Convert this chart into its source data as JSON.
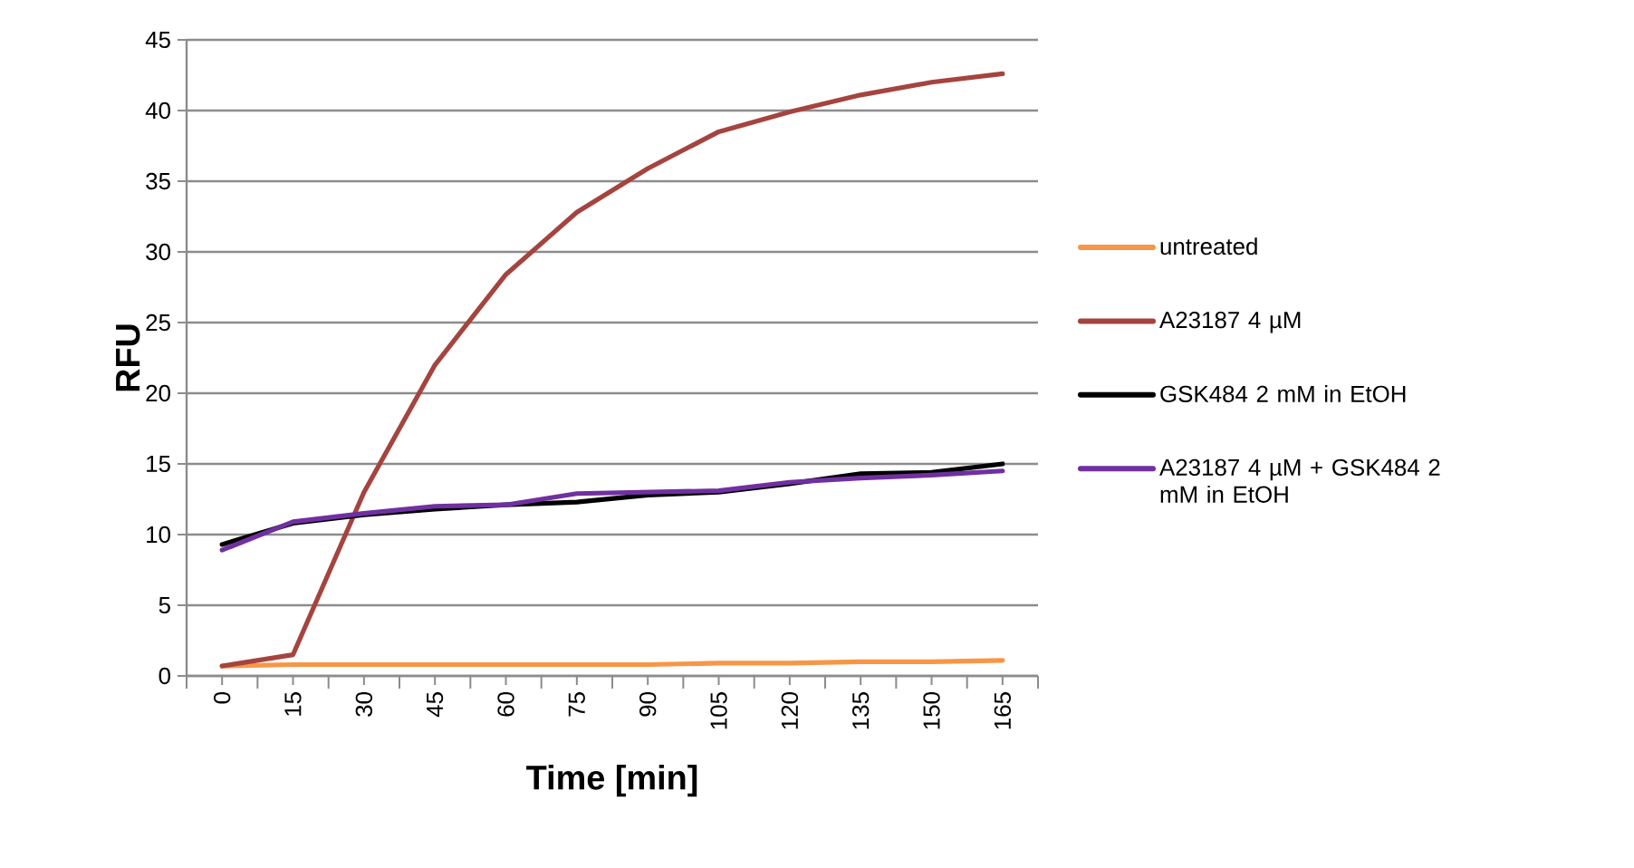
{
  "chart_data": {
    "type": "line",
    "xlabel": "Time [min]",
    "ylabel": "RFU",
    "categories": [
      "0",
      "15",
      "30",
      "45",
      "60",
      "75",
      "90",
      "105",
      "120",
      "135",
      "150",
      "165"
    ],
    "ylim": [
      0,
      45
    ],
    "yticks": [
      0,
      5,
      10,
      15,
      20,
      25,
      30,
      35,
      40,
      45
    ],
    "grid": "y",
    "legend": "right",
    "marker": "none",
    "line_style": "solid",
    "series": [
      {
        "name": "untreated",
        "color": "#f79646",
        "values": [
          0.7,
          0.8,
          0.8,
          0.8,
          0.8,
          0.8,
          0.8,
          0.9,
          0.9,
          1.0,
          1.0,
          1.1
        ]
      },
      {
        "name": "A23187 4 µM",
        "color": "#a5443f",
        "values": [
          0.7,
          1.5,
          13,
          22,
          28.4,
          32.8,
          35.9,
          38.5,
          39.9,
          41.1,
          42,
          42.6
        ]
      },
      {
        "name": "GSK484 2 mM in EtOH",
        "color": "#000000",
        "values": [
          9.3,
          10.8,
          11.4,
          11.8,
          12.1,
          12.3,
          12.8,
          13.0,
          13.6,
          14.3,
          14.4,
          15.0
        ]
      },
      {
        "name": "A23187 4 µM + GSK484 2 mM in EtOH",
        "color": "#7030a0",
        "values": [
          8.9,
          10.9,
          11.5,
          12.0,
          12.1,
          12.9,
          13.0,
          13.1,
          13.7,
          14.0,
          14.2,
          14.5
        ]
      }
    ]
  }
}
